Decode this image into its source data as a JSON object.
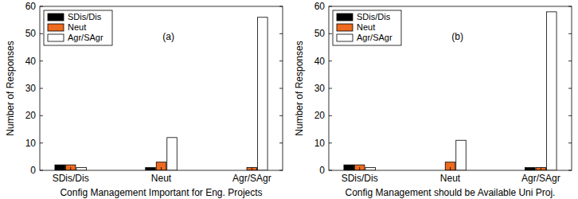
{
  "chart_data": [
    {
      "type": "bar",
      "annotation": "(a)",
      "x_label": "Config Management Important for Eng. Projects",
      "y_label": "Number of Responses",
      "categories": [
        "SDis/Dis",
        "Neut",
        "Agr/SAgr"
      ],
      "series": [
        {
          "name": "SDis/Dis",
          "color": "#000000",
          "values": [
            2,
            1,
            0
          ]
        },
        {
          "name": "Neut",
          "color": "#ee6a1f",
          "values": [
            2,
            3,
            1
          ]
        },
        {
          "name": "Agr/SAgr",
          "color": "#ffffff",
          "values": [
            1,
            12,
            56
          ]
        }
      ],
      "ylim": [
        0,
        60
      ],
      "yticks": [
        0,
        10,
        20,
        30,
        40,
        50,
        60
      ],
      "legend": "upper left"
    },
    {
      "type": "bar",
      "annotation": "(b)",
      "x_label": "Config Management should be Available Uni Proj.",
      "y_label": "Number of Responses",
      "categories": [
        "SDis/Dis",
        "Neut",
        "Agr/SAgr"
      ],
      "series": [
        {
          "name": "SDis/Dis",
          "color": "#000000",
          "values": [
            2,
            0,
            1
          ]
        },
        {
          "name": "Neut",
          "color": "#ee6a1f",
          "values": [
            2,
            3,
            1
          ]
        },
        {
          "name": "Agr/SAgr",
          "color": "#ffffff",
          "values": [
            1,
            11,
            58
          ]
        }
      ],
      "ylim": [
        0,
        60
      ],
      "yticks": [
        0,
        10,
        20,
        30,
        40,
        50,
        60
      ],
      "legend": "upper left"
    }
  ]
}
